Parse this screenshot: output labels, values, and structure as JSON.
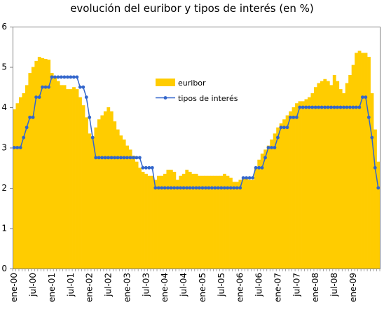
{
  "chart_data": {
    "type": "area",
    "title": "evolución del euribor y tipos de interés (en %)",
    "xlabel": "",
    "ylabel": "",
    "ylim": [
      0,
      6
    ],
    "y_ticks": [
      0,
      1,
      2,
      3,
      4,
      5,
      6
    ],
    "x_tick_labels": [
      "ene-00",
      "jul-00",
      "ene-01",
      "jul-01",
      "ene-02",
      "jul-02",
      "ene-03",
      "jul-03",
      "ene-04",
      "jul-04",
      "ene-05",
      "jul-05",
      "ene-06",
      "jul-06",
      "ene-07",
      "jul-07",
      "ene-08",
      "jul-08",
      "ene-09"
    ],
    "x_tick_month_index": [
      0,
      6,
      12,
      18,
      24,
      30,
      36,
      42,
      48,
      54,
      60,
      66,
      72,
      78,
      84,
      90,
      96,
      102,
      108
    ],
    "grid": false,
    "legend_position": "center-top",
    "colors": {
      "euribor": "#ffcc00",
      "tipos": "#3366cc",
      "plot_border": "#808080"
    },
    "series": [
      {
        "name": "euribor",
        "kind": "area",
        "values": [
          3.95,
          4.1,
          4.25,
          4.35,
          4.55,
          4.85,
          5.0,
          5.15,
          5.25,
          5.22,
          5.2,
          5.18,
          4.85,
          4.75,
          4.65,
          4.55,
          4.55,
          4.45,
          4.45,
          4.5,
          4.45,
          4.25,
          4.05,
          3.75,
          3.35,
          3.25,
          3.5,
          3.7,
          3.8,
          3.9,
          4.0,
          3.9,
          3.65,
          3.45,
          3.3,
          3.2,
          3.05,
          2.95,
          2.8,
          2.65,
          2.5,
          2.4,
          2.35,
          2.3,
          2.3,
          2.2,
          2.3,
          2.3,
          2.35,
          2.45,
          2.45,
          2.4,
          2.2,
          2.3,
          2.35,
          2.45,
          2.4,
          2.35,
          2.35,
          2.3,
          2.3,
          2.3,
          2.3,
          2.3,
          2.3,
          2.3,
          2.3,
          2.35,
          2.3,
          2.25,
          2.15,
          2.15,
          2.2,
          2.25,
          2.25,
          2.2,
          2.2,
          2.5,
          2.7,
          2.85,
          2.95,
          3.05,
          3.2,
          3.35,
          3.5,
          3.6,
          3.7,
          3.8,
          3.9,
          4.0,
          4.1,
          4.15,
          4.15,
          4.2,
          4.25,
          4.35,
          4.5,
          4.6,
          4.65,
          4.7,
          4.65,
          4.55,
          4.8,
          4.65,
          4.45,
          4.35,
          4.6,
          4.8,
          5.05,
          5.35,
          5.4,
          5.35,
          5.35,
          5.25,
          4.35,
          3.45,
          2.65
        ]
      },
      {
        "name": "tipos de interés",
        "kind": "line",
        "values": [
          3.0,
          3.0,
          3.0,
          3.25,
          3.5,
          3.75,
          3.75,
          4.25,
          4.25,
          4.5,
          4.5,
          4.5,
          4.75,
          4.75,
          4.75,
          4.75,
          4.75,
          4.75,
          4.75,
          4.75,
          4.75,
          4.5,
          4.5,
          4.25,
          3.75,
          3.25,
          2.75,
          2.75,
          2.75,
          2.75,
          2.75,
          2.75,
          2.75,
          2.75,
          2.75,
          2.75,
          2.75,
          2.75,
          2.75,
          2.75,
          2.75,
          2.5,
          2.5,
          2.5,
          2.5,
          2.0,
          2.0,
          2.0,
          2.0,
          2.0,
          2.0,
          2.0,
          2.0,
          2.0,
          2.0,
          2.0,
          2.0,
          2.0,
          2.0,
          2.0,
          2.0,
          2.0,
          2.0,
          2.0,
          2.0,
          2.0,
          2.0,
          2.0,
          2.0,
          2.0,
          2.0,
          2.0,
          2.0,
          2.25,
          2.25,
          2.25,
          2.25,
          2.5,
          2.5,
          2.5,
          2.75,
          3.0,
          3.0,
          3.0,
          3.25,
          3.5,
          3.5,
          3.5,
          3.75,
          3.75,
          3.75,
          4.0,
          4.0,
          4.0,
          4.0,
          4.0,
          4.0,
          4.0,
          4.0,
          4.0,
          4.0,
          4.0,
          4.0,
          4.0,
          4.0,
          4.0,
          4.0,
          4.0,
          4.0,
          4.0,
          4.0,
          4.25,
          4.25,
          3.75,
          3.25,
          2.5,
          2.0
        ]
      }
    ]
  }
}
